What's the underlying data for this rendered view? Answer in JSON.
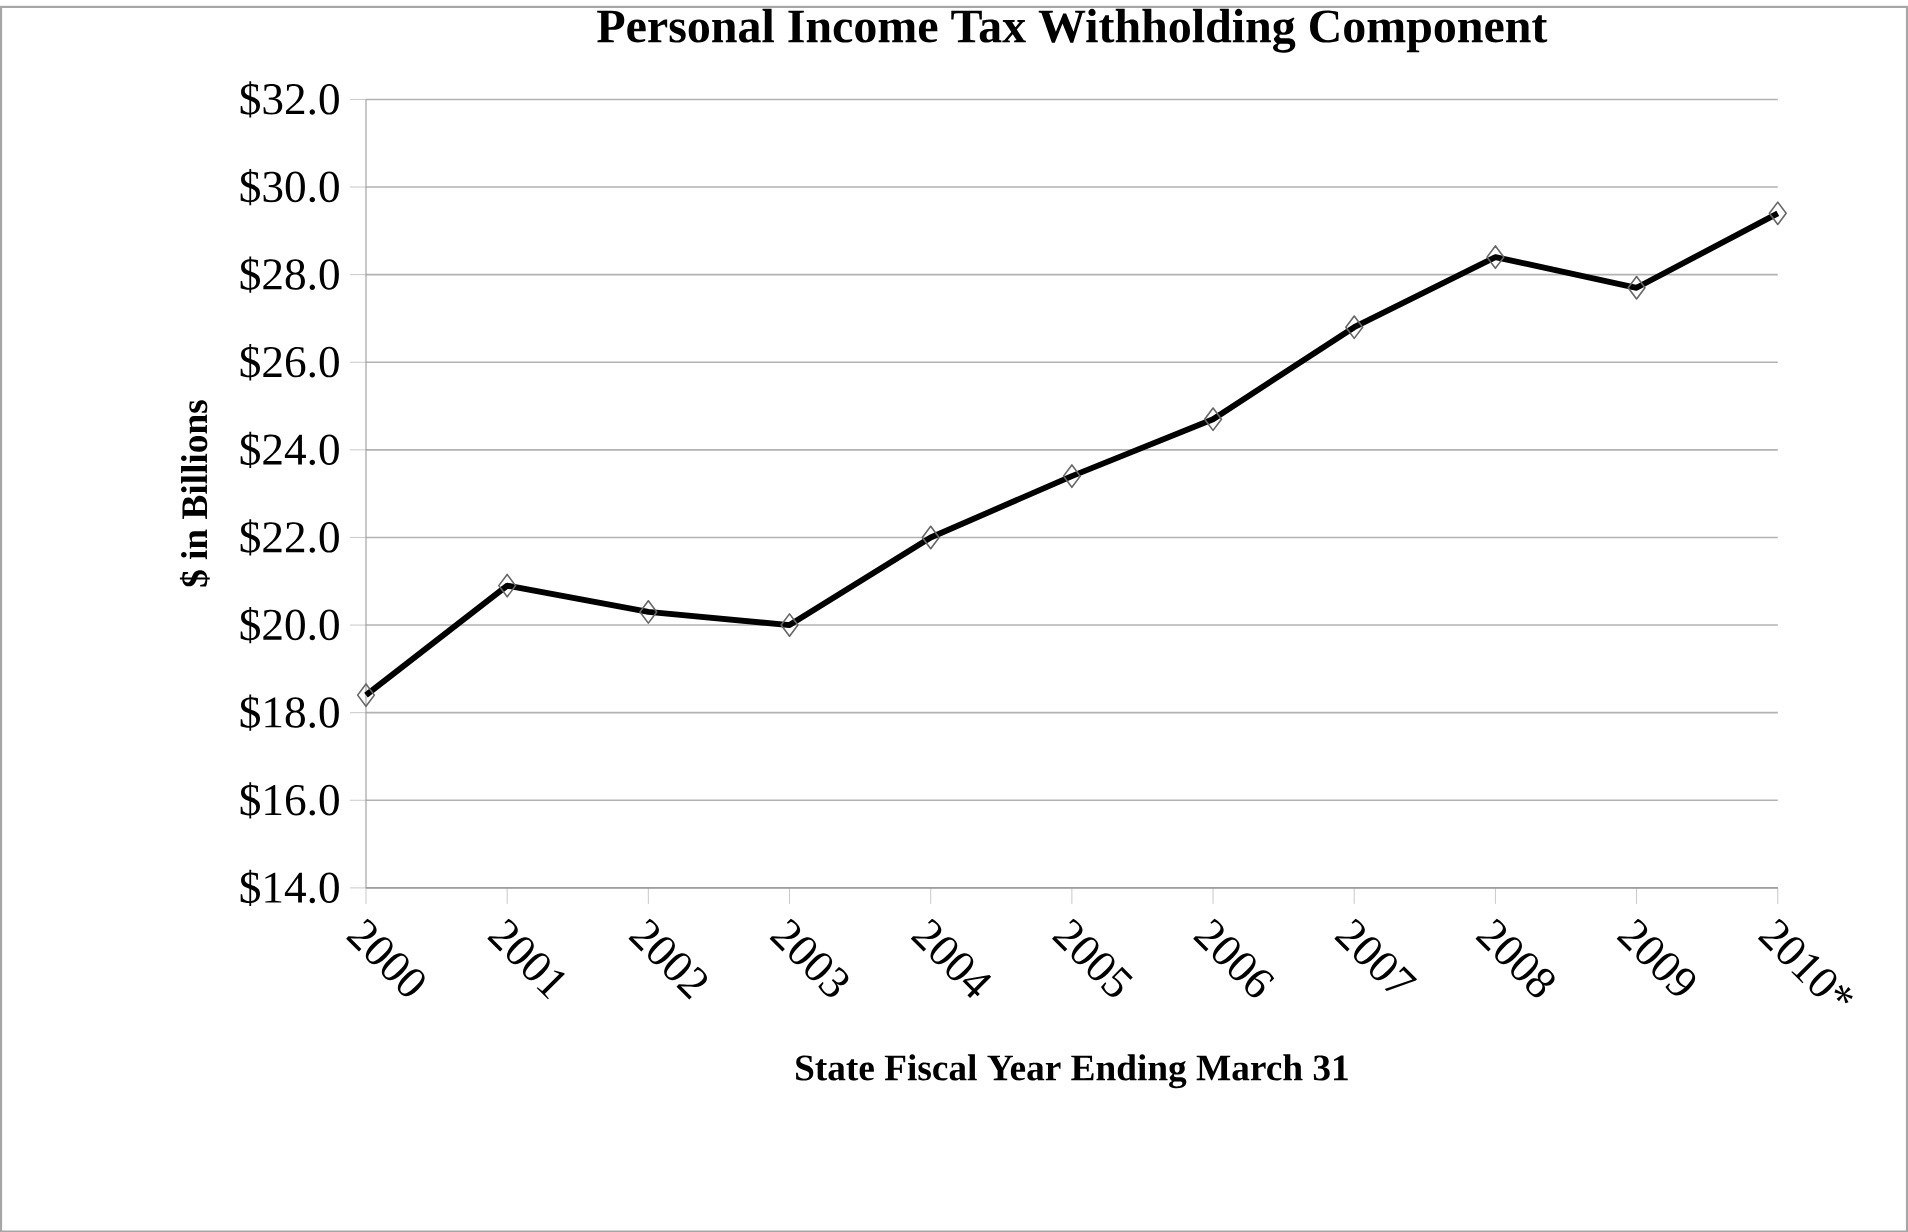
{
  "chart_data": {
    "type": "line",
    "title": "Personal Income Tax Withholding Component",
    "xlabel": "State Fiscal Year Ending March 31",
    "ylabel": "$ in Billions",
    "categories": [
      "2000",
      "2001",
      "2002",
      "2003",
      "2004",
      "2005",
      "2006",
      "2007",
      "2008",
      "2009",
      "2010*"
    ],
    "series": [
      {
        "color": "#000000",
        "values": [
          18.4,
          20.9,
          20.3,
          20.0,
          22.0,
          23.4,
          24.7,
          26.8,
          28.4,
          27.7,
          29.4
        ]
      }
    ],
    "ylim": [
      14,
      32
    ],
    "yticks": [
      {
        "value": 14,
        "label": "$14.0"
      },
      {
        "value": 16,
        "label": "$16.0"
      },
      {
        "value": 18,
        "label": "$18.0"
      },
      {
        "value": 20,
        "label": "$20.0"
      },
      {
        "value": 22,
        "label": "$22.0"
      },
      {
        "value": 24,
        "label": "$24.0"
      },
      {
        "value": 26,
        "label": "$26.0"
      },
      {
        "value": 28,
        "label": "$28.0"
      },
      {
        "value": 30,
        "label": "$30.0"
      },
      {
        "value": 32,
        "label": "$32.0"
      }
    ],
    "grid": "y",
    "marker": "diamond",
    "line_style": "solid"
  }
}
